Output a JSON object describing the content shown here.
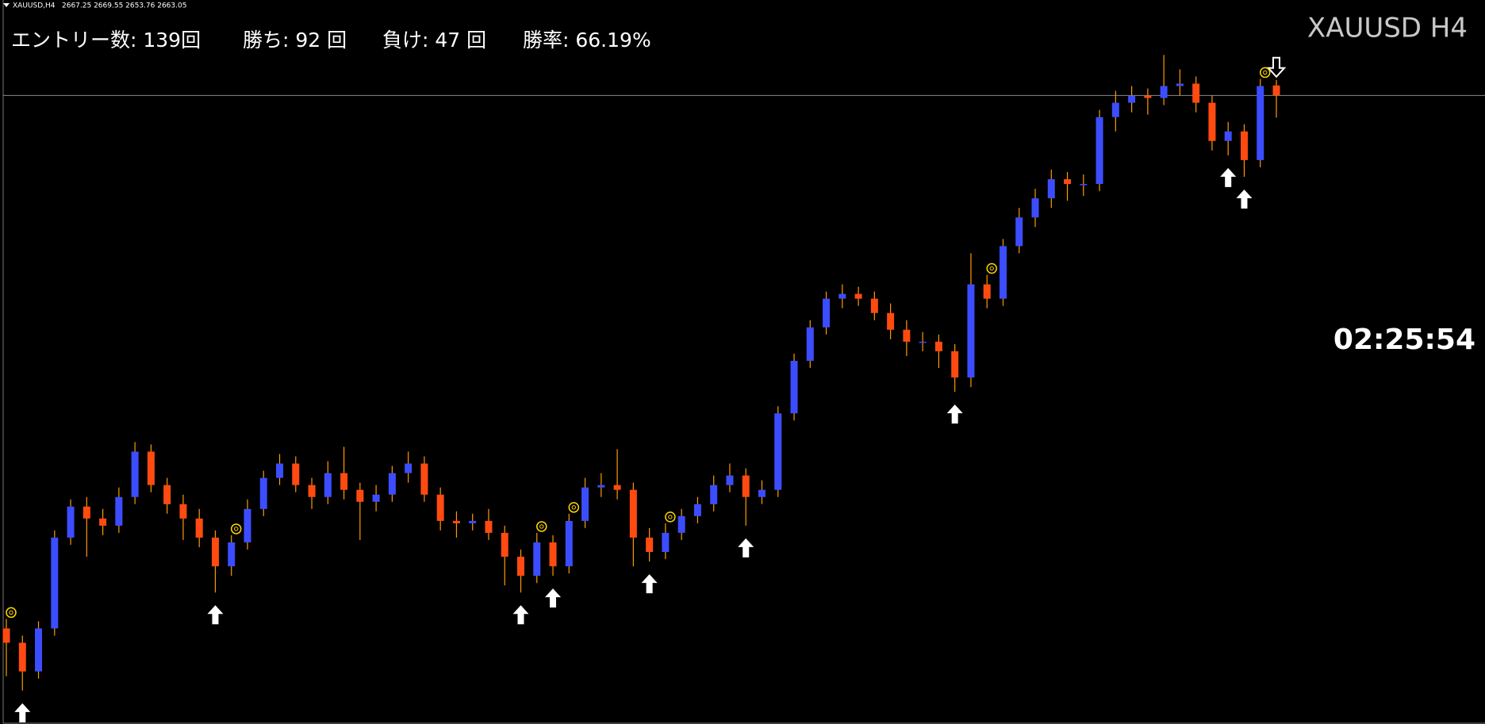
{
  "header": {
    "symbol": "XAUUSD,H4",
    "ohlc": "2667.25 2669.55 2653.76 2663.05"
  },
  "stats": [
    "エントリー数: 139回",
    "勝ち: 92 回",
    "負け: 47 回",
    "勝率: 66.19%"
  ],
  "symbol_label": "XAUUSD H4",
  "timer": "02:25:54",
  "chart_data": {
    "type": "candlestick",
    "ylim": [
      2400,
      2703
    ],
    "up_color": "#3c4dff",
    "down_color": "#ff4a12",
    "wick_color": "#ff9a00",
    "open": [
      2440,
      2434,
      2422,
      2440,
      2478,
      2491,
      2486,
      2483,
      2495,
      2514,
      2500,
      2492,
      2486,
      2478,
      2466,
      2476,
      2490,
      2503,
      2509,
      2500,
      2495,
      2505,
      2498,
      2493,
      2496,
      2505,
      2509,
      2496,
      2485,
      2484,
      2485,
      2480,
      2470,
      2462,
      2476,
      2466,
      2485,
      2499,
      2500,
      2498,
      2478,
      2472,
      2480,
      2487,
      2492,
      2500,
      2504,
      2495,
      2498,
      2530,
      2552,
      2566,
      2578,
      2580,
      2578,
      2572,
      2565,
      2560,
      2560,
      2556,
      2545,
      2584,
      2578,
      2600,
      2612,
      2620,
      2628,
      2626,
      2626,
      2654,
      2660,
      2663,
      2662,
      2667,
      2668,
      2660,
      2644,
      2648,
      2636,
      2667.25
    ],
    "high": [
      2444,
      2437,
      2443,
      2481,
      2494,
      2495,
      2490,
      2499,
      2518,
      2517,
      2503,
      2496,
      2490,
      2481,
      2479,
      2494,
      2506,
      2513,
      2512,
      2503,
      2510,
      2516,
      2501,
      2500,
      2508,
      2514,
      2512,
      2499,
      2489,
      2488,
      2490,
      2483,
      2473,
      2480,
      2479,
      2488,
      2503,
      2505,
      2515,
      2501,
      2482,
      2484,
      2490,
      2495,
      2504,
      2509,
      2507,
      2502,
      2533,
      2555,
      2569,
      2581,
      2584,
      2583,
      2581,
      2576,
      2569,
      2564,
      2563,
      2559,
      2597,
      2588,
      2603,
      2616,
      2624,
      2632,
      2631,
      2630,
      2657,
      2665,
      2667,
      2666,
      2680,
      2674,
      2671,
      2663,
      2652,
      2651,
      2670,
      2669.55
    ],
    "low": [
      2420,
      2414,
      2419,
      2437,
      2475,
      2470,
      2479,
      2480,
      2492,
      2497,
      2488,
      2477,
      2474,
      2455,
      2462,
      2473,
      2487,
      2500,
      2497,
      2490,
      2492,
      2494,
      2477,
      2489,
      2493,
      2501,
      2493,
      2481,
      2478,
      2481,
      2477,
      2458,
      2455,
      2459,
      2462,
      2463,
      2482,
      2495,
      2494,
      2466,
      2468,
      2469,
      2477,
      2484,
      2489,
      2497,
      2483,
      2492,
      2495,
      2527,
      2549,
      2563,
      2574,
      2575,
      2569,
      2561,
      2554,
      2556,
      2549,
      2539,
      2541,
      2574,
      2575,
      2597,
      2608,
      2616,
      2619,
      2621,
      2623,
      2648,
      2656,
      2655,
      2659,
      2663,
      2656,
      2640,
      2638,
      2629,
      2633,
      2653.76
    ],
    "close": [
      2434,
      2422,
      2440,
      2478,
      2491,
      2486,
      2483,
      2495,
      2514,
      2500,
      2492,
      2486,
      2478,
      2466,
      2476,
      2490,
      2503,
      2509,
      2500,
      2495,
      2505,
      2498,
      2493,
      2496,
      2505,
      2509,
      2496,
      2485,
      2484,
      2485,
      2480,
      2470,
      2462,
      2476,
      2466,
      2485,
      2499,
      2500,
      2498,
      2478,
      2472,
      2480,
      2487,
      2492,
      2500,
      2504,
      2495,
      2498,
      2530,
      2552,
      2566,
      2578,
      2580,
      2578,
      2572,
      2565,
      2560,
      2560,
      2556,
      2545,
      2584,
      2578,
      2600,
      2612,
      2620,
      2628,
      2626,
      2626,
      2654,
      2660,
      2663,
      2662,
      2667,
      2668,
      2660,
      2644,
      2648,
      2636,
      2667,
      2663.05
    ],
    "buy_signals": [
      1,
      13,
      32,
      34,
      40,
      46,
      59,
      76,
      77
    ],
    "sell_signals": [
      79
    ],
    "exit_markers": [
      0,
      14,
      33,
      35,
      41,
      61,
      78
    ]
  }
}
